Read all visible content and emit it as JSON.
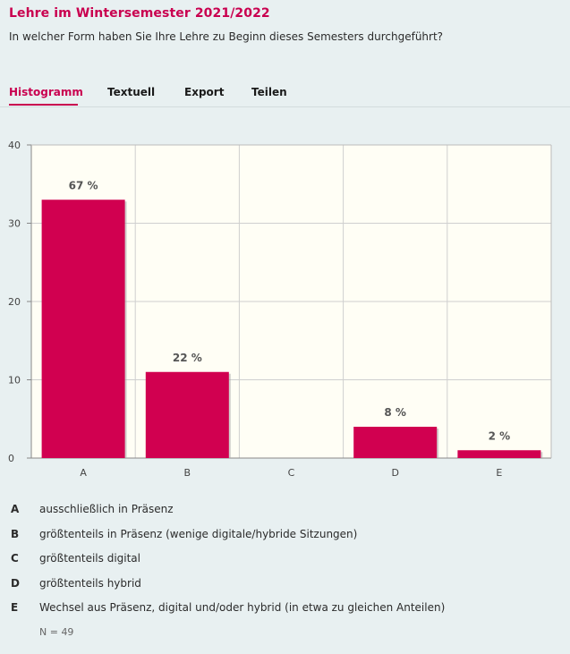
{
  "title": "Lehre im Wintersemester 2021/2022",
  "question": "In welcher Form haben Sie Ihre Lehre zu Beginn dieses Semesters durchgeführt?",
  "tabs": [
    {
      "label": "Histogramm",
      "active": true
    },
    {
      "label": "Textuell",
      "active": false
    },
    {
      "label": "Export",
      "active": false
    },
    {
      "label": "Teilen",
      "active": false
    }
  ],
  "colors": {
    "accent": "#c9004f",
    "bar": "#d10050",
    "plot_bg": "#fffef5",
    "page_bg": "#e8f0f1"
  },
  "chart_data": {
    "type": "bar",
    "categories": [
      "A",
      "B",
      "C",
      "D",
      "E"
    ],
    "values": [
      33,
      11,
      0,
      4,
      1
    ],
    "data_labels": [
      "67 %",
      "22 %",
      "",
      "8 %",
      "2 %"
    ],
    "ylim": [
      0,
      40
    ],
    "yticks": [
      0,
      10,
      20,
      30,
      40
    ],
    "grid": true
  },
  "legend": [
    {
      "key": "A",
      "text": "ausschließlich in Präsenz"
    },
    {
      "key": "B",
      "text": "größtenteils in Präsenz (wenige digitale/hybride Sitzungen)"
    },
    {
      "key": "C",
      "text": "größtenteils digital"
    },
    {
      "key": "D",
      "text": "größtenteils hybrid"
    },
    {
      "key": "E",
      "text": "Wechsel aus Präsenz, digital und/oder hybrid (in etwa zu gleichen Anteilen)"
    }
  ],
  "n_label": "N = 49"
}
